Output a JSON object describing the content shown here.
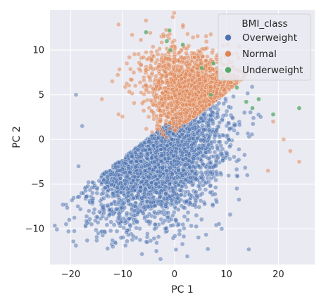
{
  "chart_data": {
    "type": "scatter",
    "title": "",
    "xlabel": "PC 1",
    "ylabel": "PC 2",
    "xlim": [
      -24,
      27
    ],
    "ylim": [
      -14,
      14.5
    ],
    "xticks": [
      -20,
      -10,
      0,
      10,
      20
    ],
    "yticks": [
      -10,
      -5,
      0,
      5,
      10
    ],
    "grid": true,
    "legend": {
      "title": "BMI_class",
      "placement": "top-right"
    },
    "series": [
      {
        "name": "Overweight",
        "color": "#4c72b0",
        "alpha": 0.5,
        "cloud": {
          "center": [
            -4,
            -1.2
          ],
          "spread": [
            6.3,
            3.6
          ],
          "n": 3200
        },
        "points": [
          [
            -21.5,
            -7.3
          ],
          [
            -20.3,
            -9.0
          ],
          [
            -19.0,
            5.0
          ],
          [
            -18.5,
            -3.0
          ],
          [
            -17.8,
            1.5
          ],
          [
            -16.6,
            -4.8
          ],
          [
            -16.0,
            -9.5
          ],
          [
            -14.7,
            -10.5
          ],
          [
            -13.5,
            -10.3
          ],
          [
            -11.9,
            -12.0
          ],
          [
            -10.3,
            -11.0
          ],
          [
            -7.4,
            -11.0
          ],
          [
            -5.3,
            -11.5
          ],
          [
            -3.5,
            -12.5
          ],
          [
            -1.8,
            -10.0
          ],
          [
            0.8,
            -9.5
          ],
          [
            4.2,
            -8.5
          ],
          [
            8.1,
            -7.0
          ],
          [
            12.0,
            -5.5
          ],
          [
            14.3,
            -12.3
          ],
          [
            14.0,
            -4.0
          ]
        ]
      },
      {
        "name": "Normal",
        "color": "#dd8452",
        "alpha": 0.5,
        "cloud": {
          "center": [
            6.0,
            4.0
          ],
          "spread": [
            5.2,
            2.7
          ],
          "n": 1700
        },
        "points": [
          [
            -5.5,
            13.3
          ],
          [
            -9.2,
            8.5
          ],
          [
            -12.0,
            6.5
          ],
          [
            -14.0,
            4.5
          ],
          [
            2.5,
            11.8
          ],
          [
            6.2,
            10.2
          ],
          [
            11.0,
            9.5
          ],
          [
            15.5,
            7.5
          ],
          [
            19.0,
            2.0
          ],
          [
            21.0,
            0.0
          ],
          [
            22.3,
            -1.3
          ],
          [
            24.0,
            -2.5
          ],
          [
            18.0,
            -3.5
          ]
        ]
      },
      {
        "name": "Underweight",
        "color": "#55a868",
        "alpha": 0.75,
        "points": [
          [
            -5.5,
            12.0
          ],
          [
            -1.0,
            12.2
          ],
          [
            -1.5,
            11.0
          ],
          [
            1.6,
            10.6
          ],
          [
            -0.8,
            10.0
          ],
          [
            5.2,
            8.0
          ],
          [
            7.5,
            8.5
          ],
          [
            9.3,
            6.8
          ],
          [
            12.0,
            5.8
          ],
          [
            13.8,
            4.2
          ],
          [
            15.0,
            3.5
          ],
          [
            16.2,
            4.5
          ],
          [
            19.0,
            2.8
          ],
          [
            24.0,
            3.5
          ],
          [
            7.0,
            5.0
          ]
        ]
      }
    ]
  }
}
